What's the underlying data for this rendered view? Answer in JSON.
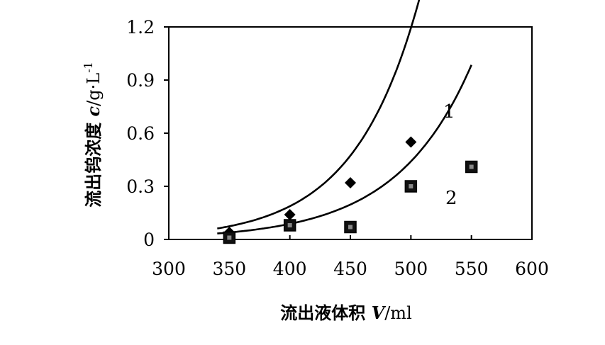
{
  "chart_data": {
    "type": "scatter",
    "xlabel": {
      "prefix": "流出液体积 ",
      "symbol": "V",
      "unit": "/ml"
    },
    "ylabel": {
      "prefix": "流出钨浓度 ",
      "symbol": "c",
      "unit": "/g·L",
      "superscript": "-1"
    },
    "xlim": [
      300,
      600
    ],
    "ylim": [
      0,
      1.2
    ],
    "x_ticks": [
      "300",
      "350",
      "400",
      "450",
      "500",
      "550",
      "600"
    ],
    "y_ticks": [
      "0",
      "0.3",
      "0.6",
      "0.9",
      "1.2"
    ],
    "grid": false,
    "legend": "none",
    "series": [
      {
        "name": "1",
        "marker": "diamond",
        "x": [
          350,
          400,
          450,
          500
        ],
        "y": [
          0.04,
          0.14,
          0.32,
          0.55
        ],
        "fit": {
          "type": "exponential",
          "a": 0.0295,
          "b": 0.0185,
          "x_from": 340,
          "x_to": 548
        }
      },
      {
        "name": "2",
        "marker": "square",
        "x": [
          350,
          400,
          450,
          500,
          550
        ],
        "y": [
          0.01,
          0.08,
          0.07,
          0.3,
          0.41
        ],
        "fit": {
          "type": "exponential",
          "a": 0.0176,
          "b": 0.0161,
          "x_from": 340,
          "x_to": 550
        }
      }
    ]
  }
}
